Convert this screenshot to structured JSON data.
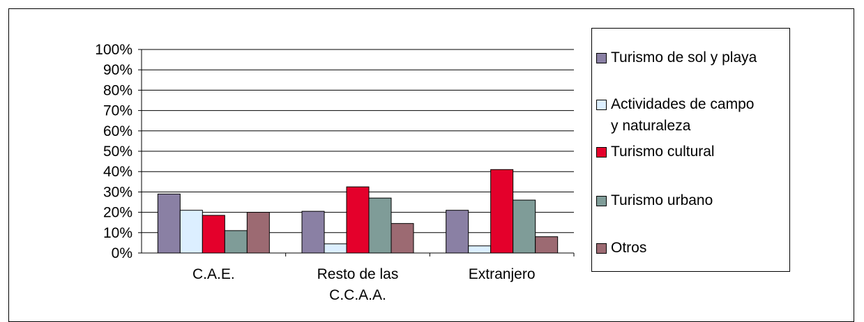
{
  "chart_data": {
    "type": "bar",
    "categories": [
      "C.A.E.",
      "Resto de las C.C.A.A.",
      "Extranjero"
    ],
    "category_label_lines": [
      [
        "C.A.E."
      ],
      [
        "Resto de las",
        "C.C.A.A."
      ],
      [
        "Extranjero"
      ]
    ],
    "series": [
      {
        "name": "Turismo de sol y playa",
        "legend_lines": [
          "Turismo de sol y playa"
        ],
        "color": "#8a80a4",
        "values": [
          29,
          20.5,
          21
        ]
      },
      {
        "name": "Actividades de campo y naturaleza",
        "legend_lines": [
          "Actividades de campo",
          "y naturaleza"
        ],
        "color": "#dcefff",
        "values": [
          21,
          4.5,
          3.5
        ]
      },
      {
        "name": "Turismo cultural",
        "legend_lines": [
          "Turismo cultural"
        ],
        "color": "#e4002b",
        "values": [
          18.5,
          32.5,
          41
        ]
      },
      {
        "name": "Turismo urbano",
        "legend_lines": [
          "Turismo urbano"
        ],
        "color": "#7f9c98",
        "values": [
          11,
          27,
          26
        ]
      },
      {
        "name": "Otros",
        "legend_lines": [
          "Otros"
        ],
        "color": "#9c6a72",
        "values": [
          20,
          14.5,
          8
        ]
      }
    ],
    "y_ticks": [
      "0%",
      "10%",
      "20%",
      "30%",
      "40%",
      "50%",
      "60%",
      "70%",
      "80%",
      "90%",
      "100%"
    ],
    "ylim": [
      0,
      100
    ],
    "y_unit": "%",
    "grid": true,
    "legend_position": "right",
    "title": "",
    "xlabel": "",
    "ylabel": ""
  }
}
